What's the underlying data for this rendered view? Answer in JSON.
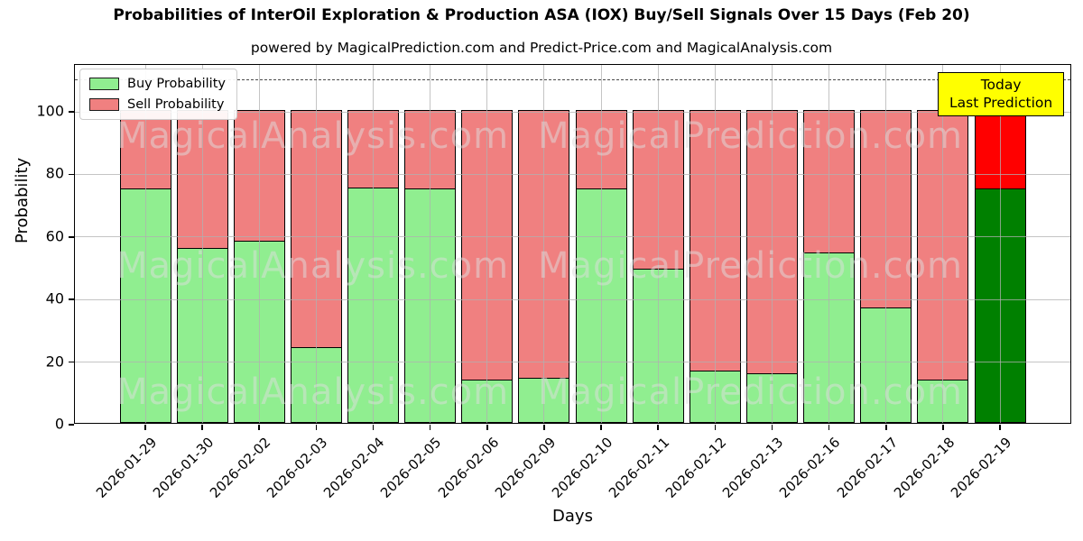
{
  "title": "Probabilities of InterOil Exploration & Production ASA (IOX) Buy/Sell Signals Over 15 Days (Feb 20)",
  "subtitle": "powered by MagicalPrediction.com and Predict-Price.com and MagicalAnalysis.com",
  "legend": {
    "items": [
      {
        "label": "Buy Probability",
        "color": "#90ee90"
      },
      {
        "label": "Sell Probability",
        "color": "#f08080"
      }
    ]
  },
  "annotation": {
    "line1": "Today",
    "line2": "Last Prediction",
    "bg_color": "#ffff00"
  },
  "watermarks": {
    "left": "MagicalAnalysis.com",
    "right": "MagicalPrediction.com"
  },
  "axes": {
    "ylabel": "Probability",
    "xlabel": "Days",
    "yticks": [
      0,
      20,
      40,
      60,
      80,
      100
    ],
    "dashed_line_y": 110
  },
  "chart_data": {
    "type": "bar",
    "stacked": true,
    "title": "Probabilities of InterOil Exploration & Production ASA (IOX) Buy/Sell Signals Over 15 Days (Feb 20)",
    "xlabel": "Days",
    "ylabel": "Probability",
    "ylim": [
      0,
      115
    ],
    "grid": true,
    "legend_position": "upper left",
    "categories": [
      "2026-01-29",
      "2026-01-30",
      "2026-02-02",
      "2026-02-03",
      "2026-02-04",
      "2026-02-05",
      "2026-02-06",
      "2026-02-09",
      "2026-02-10",
      "2026-02-11",
      "2026-02-12",
      "2026-02-13",
      "2026-02-16",
      "2026-02-17",
      "2026-02-18",
      "2026-02-19"
    ],
    "series": [
      {
        "name": "Buy Probability",
        "color": "#90ee90",
        "values": [
          75,
          56,
          58.5,
          24.5,
          75.5,
          75,
          14,
          14.5,
          75,
          49.5,
          17,
          16,
          54.5,
          37,
          14,
          75
        ]
      },
      {
        "name": "Sell Probability",
        "color": "#f08080",
        "values": [
          25,
          44,
          41.5,
          75.5,
          24.5,
          25,
          86,
          85.5,
          25,
          50.5,
          83,
          84,
          45.5,
          63,
          86,
          25
        ]
      }
    ],
    "today_bar": {
      "category": "2026-02-19",
      "buy_color": "#008000",
      "sell_color": "#ff0000"
    },
    "dashed_line_y": 110
  }
}
